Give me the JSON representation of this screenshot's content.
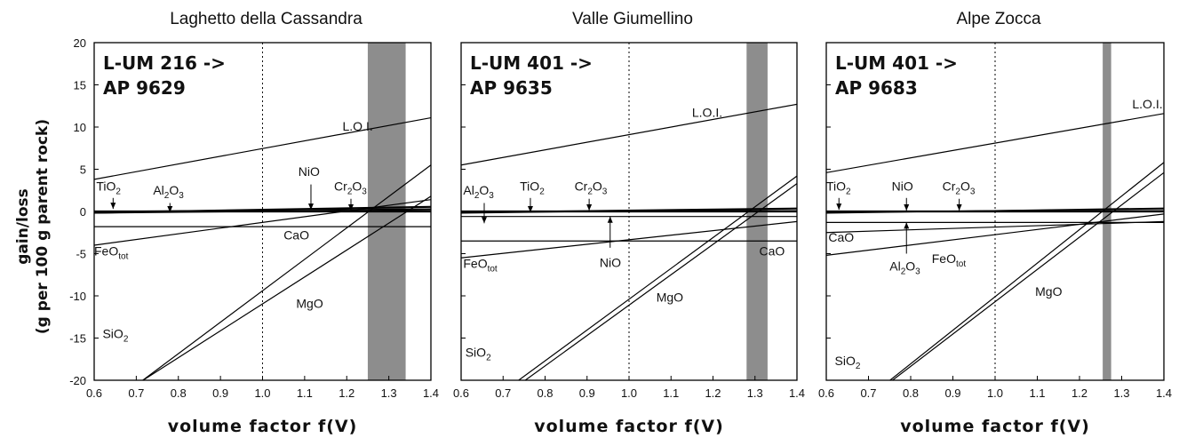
{
  "chart_data": [
    {
      "type": "line",
      "title": "Laghetto della Cassandra",
      "sample_line1": "L-UM 216 ->",
      "sample_line2": "AP 9629",
      "xlim": [
        0.6,
        1.4
      ],
      "ylim": [
        -20,
        20
      ],
      "shaded_band": [
        1.25,
        1.34
      ],
      "reference_line": 1.0,
      "series": [
        {
          "name": "L.O.I.",
          "x": [
            0.6,
            1.4
          ],
          "y": [
            3.8,
            11.1
          ]
        },
        {
          "name": "TiO2",
          "x": [
            0.6,
            1.4
          ],
          "y": [
            -0.2,
            0.2
          ]
        },
        {
          "name": "Al2O3",
          "x": [
            0.6,
            1.4
          ],
          "y": [
            -0.1,
            0.6
          ]
        },
        {
          "name": "NiO",
          "x": [
            0.6,
            1.4
          ],
          "y": [
            0.0,
            0.3
          ]
        },
        {
          "name": "Cr2O3",
          "x": [
            0.6,
            1.4
          ],
          "y": [
            -0.2,
            0.5
          ]
        },
        {
          "name": "CaO",
          "x": [
            0.6,
            1.4
          ],
          "y": [
            -1.8,
            -1.8
          ]
        },
        {
          "name": "FeOtot",
          "x": [
            0.6,
            1.4
          ],
          "y": [
            -4.0,
            1.4
          ]
        },
        {
          "name": "MgO",
          "x": [
            0.6,
            1.4
          ],
          "y": [
            -24.3,
            5.5
          ]
        },
        {
          "name": "SiO2",
          "x": [
            0.6,
            1.4
          ],
          "y": [
            -23.7,
            1.8
          ]
        }
      ]
    },
    {
      "type": "line",
      "title": "Valle Giumellino",
      "sample_line1": "L-UM 401 ->",
      "sample_line2": "AP 9635",
      "xlim": [
        0.6,
        1.4
      ],
      "ylim": [
        -20,
        20
      ],
      "shaded_band": [
        1.28,
        1.33
      ],
      "reference_line": 1.0,
      "series": [
        {
          "name": "L.O.I.",
          "x": [
            0.6,
            1.4
          ],
          "y": [
            5.5,
            12.7
          ]
        },
        {
          "name": "Al2O3",
          "x": [
            0.6,
            1.4
          ],
          "y": [
            -0.2,
            0.3
          ]
        },
        {
          "name": "TiO2",
          "x": [
            0.6,
            1.4
          ],
          "y": [
            0.0,
            0.1
          ]
        },
        {
          "name": "Cr2O3",
          "x": [
            0.6,
            1.4
          ],
          "y": [
            -0.1,
            0.4
          ]
        },
        {
          "name": "CaO",
          "x": [
            0.6,
            1.4
          ],
          "y": [
            -3.5,
            -3.5
          ]
        },
        {
          "name": "NiO",
          "x": [
            0.6,
            1.4
          ],
          "y": [
            -0.6,
            -0.6
          ]
        },
        {
          "name": "FeOtot",
          "x": [
            0.6,
            1.4
          ],
          "y": [
            -5.5,
            -1.2
          ]
        },
        {
          "name": "MgO",
          "x": [
            0.6,
            1.4
          ],
          "y": [
            -25.0,
            4.2
          ]
        },
        {
          "name": "SiO2",
          "x": [
            0.6,
            1.4
          ],
          "y": [
            -25.5,
            3.3
          ]
        }
      ]
    },
    {
      "type": "line",
      "title": "Alpe Zocca",
      "sample_line1": "L-UM 401 ->",
      "sample_line2": "AP 9683",
      "xlim": [
        0.6,
        1.4
      ],
      "ylim": [
        -20,
        20
      ],
      "shaded_band": [
        1.255,
        1.275
      ],
      "reference_line": 1.0,
      "series": [
        {
          "name": "L.O.I.",
          "x": [
            0.6,
            1.4
          ],
          "y": [
            4.6,
            11.6
          ]
        },
        {
          "name": "TiO2",
          "x": [
            0.6,
            1.4
          ],
          "y": [
            -0.1,
            0.3
          ]
        },
        {
          "name": "NiO",
          "x": [
            0.6,
            1.4
          ],
          "y": [
            0.0,
            0.1
          ]
        },
        {
          "name": "Cr2O3",
          "x": [
            0.6,
            1.4
          ],
          "y": [
            -0.2,
            0.4
          ]
        },
        {
          "name": "CaO",
          "x": [
            0.6,
            1.4
          ],
          "y": [
            -2.5,
            -1.2
          ]
        },
        {
          "name": "Al2O3",
          "x": [
            0.6,
            1.4
          ],
          "y": [
            -1.3,
            -1.3
          ]
        },
        {
          "name": "FeOtot",
          "x": [
            0.6,
            1.4
          ],
          "y": [
            -5.2,
            -0.3
          ]
        },
        {
          "name": "MgO",
          "x": [
            0.6,
            1.4
          ],
          "y": [
            -26.0,
            5.8
          ]
        },
        {
          "name": "SiO2",
          "x": [
            0.6,
            1.4
          ],
          "y": [
            -26.0,
            4.6
          ]
        }
      ]
    }
  ],
  "axes": {
    "xlabel": "volume factor f(V)",
    "ylabel_line1": "gain/loss",
    "ylabel_line2": "(g per 100 g parent rock)",
    "x_ticks": [
      "0.6",
      "0.7",
      "0.8",
      "0.9",
      "1.0",
      "1.1",
      "1.2",
      "1.3",
      "1.4"
    ],
    "y_ticks": [
      "20",
      "15",
      "10",
      "5",
      "0",
      "-5",
      "-10",
      "-15",
      "-20"
    ]
  },
  "annotations": [
    [
      {
        "text": "L.O.I.",
        "x": 1.19,
        "y": 9.6
      },
      {
        "text": "TiO",
        "sub": "2",
        "x": 0.605,
        "y": 2.5,
        "arrow": [
          0.645,
          1.6,
          0.645,
          0.3
        ]
      },
      {
        "text": "Al",
        "sub": "2",
        "text2": "O",
        "sub2": "3",
        "x": 0.74,
        "y": 2.0,
        "arrow": [
          0.78,
          1.0,
          0.78,
          -0.1
        ]
      },
      {
        "text": "NiO",
        "x": 1.085,
        "y": 4.2,
        "arrow": [
          1.115,
          3.2,
          1.115,
          0.2
        ]
      },
      {
        "text": "Cr",
        "sub": "2",
        "text2": "O",
        "sub2": "3",
        "x": 1.17,
        "y": 2.5,
        "arrow": [
          1.21,
          1.5,
          1.21,
          0.1
        ]
      },
      {
        "text": "CaO",
        "x": 1.05,
        "y": -3.3
      },
      {
        "text": "FeO",
        "sub": "tot",
        "x": 0.6,
        "y": -5.2
      },
      {
        "text": "MgO",
        "x": 1.08,
        "y": -11.4
      },
      {
        "text": "SiO",
        "sub": "2",
        "x": 0.62,
        "y": -15.0
      }
    ],
    [
      {
        "text": "L.O.I.",
        "x": 1.15,
        "y": 11.2
      },
      {
        "text": "Al",
        "sub": "2",
        "text2": "O",
        "sub2": "3",
        "x": 0.605,
        "y": 2.0,
        "arrow": [
          0.655,
          1.0,
          0.655,
          -1.4
        ]
      },
      {
        "text": "TiO",
        "sub": "2",
        "x": 0.74,
        "y": 2.5,
        "arrow": [
          0.765,
          1.6,
          0.765,
          -0.1
        ]
      },
      {
        "text": "Cr",
        "sub": "2",
        "text2": "O",
        "sub2": "3",
        "x": 0.87,
        "y": 2.5,
        "arrow": [
          0.905,
          1.5,
          0.905,
          0.1
        ]
      },
      {
        "text": "NiO",
        "x": 0.93,
        "y": -6.6,
        "arrow": [
          0.955,
          -4.3,
          0.955,
          -0.6
        ]
      },
      {
        "text": "CaO",
        "x": 1.31,
        "y": -5.2
      },
      {
        "text": "FeO",
        "sub": "tot",
        "x": 0.605,
        "y": -6.7
      },
      {
        "text": "MgO",
        "x": 1.065,
        "y": -10.7
      },
      {
        "text": "SiO",
        "sub": "2",
        "x": 0.61,
        "y": -17.2
      }
    ],
    [
      {
        "text": "L.O.I.",
        "x": 1.325,
        "y": 12.2
      },
      {
        "text": "TiO",
        "sub": "2",
        "x": 0.6,
        "y": 2.5,
        "arrow": [
          0.63,
          1.6,
          0.63,
          0.2
        ]
      },
      {
        "text": "NiO",
        "x": 0.755,
        "y": 2.5,
        "arrow": [
          0.79,
          1.6,
          0.79,
          0.1
        ]
      },
      {
        "text": "Cr",
        "sub": "2",
        "text2": "O",
        "sub2": "3",
        "x": 0.875,
        "y": 2.5,
        "arrow": [
          0.915,
          1.5,
          0.915,
          0.1
        ]
      },
      {
        "text": "CaO",
        "x": 0.605,
        "y": -3.6
      },
      {
        "text": "Al",
        "sub": "2",
        "text2": "O",
        "sub2": "3",
        "x": 0.75,
        "y": -7.0,
        "arrow": [
          0.79,
          -5.0,
          0.79,
          -1.3
        ]
      },
      {
        "text": "FeO",
        "sub": "tot",
        "x": 0.85,
        "y": -6.1
      },
      {
        "text": "MgO",
        "x": 1.095,
        "y": -10.0
      },
      {
        "text": "SiO",
        "sub": "2",
        "x": 0.62,
        "y": -18.2
      }
    ]
  ]
}
